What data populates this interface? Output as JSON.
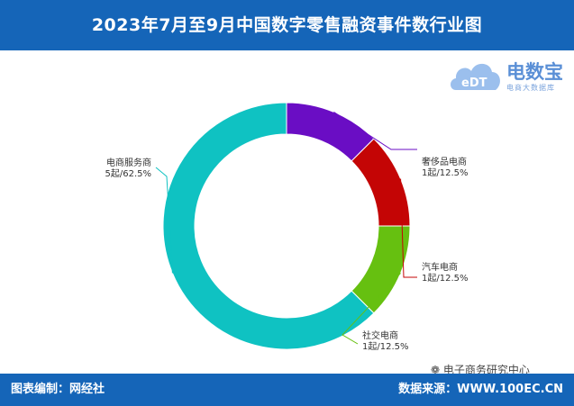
{
  "title": "2023年7月至9月中国数字零售融资事件数行业图",
  "logo": {
    "name": "电数宝",
    "tagline": "电商大数据库",
    "mark_text": "eDT"
  },
  "footer": {
    "left": "图表编制：网经社",
    "right": "数据来源：WWW.100EC.CN"
  },
  "watermark": "电子商务研究中心",
  "chart_data": {
    "type": "pie",
    "donut": true,
    "unit": "起",
    "slices": [
      {
        "name": "奢侈品电商",
        "value": 1,
        "percent": 12.5,
        "label": "1起/12.5%",
        "color": "#6a0dc4"
      },
      {
        "name": "汽车电商",
        "value": 1,
        "percent": 12.5,
        "label": "1起/12.5%",
        "color": "#c40505"
      },
      {
        "name": "社交电商",
        "value": 1,
        "percent": 12.5,
        "label": "1起/12.5%",
        "color": "#66c010"
      },
      {
        "name": "电商服务商",
        "value": 5,
        "percent": 62.5,
        "label": "5起/62.5%",
        "color": "#0fc2c2"
      }
    ]
  }
}
